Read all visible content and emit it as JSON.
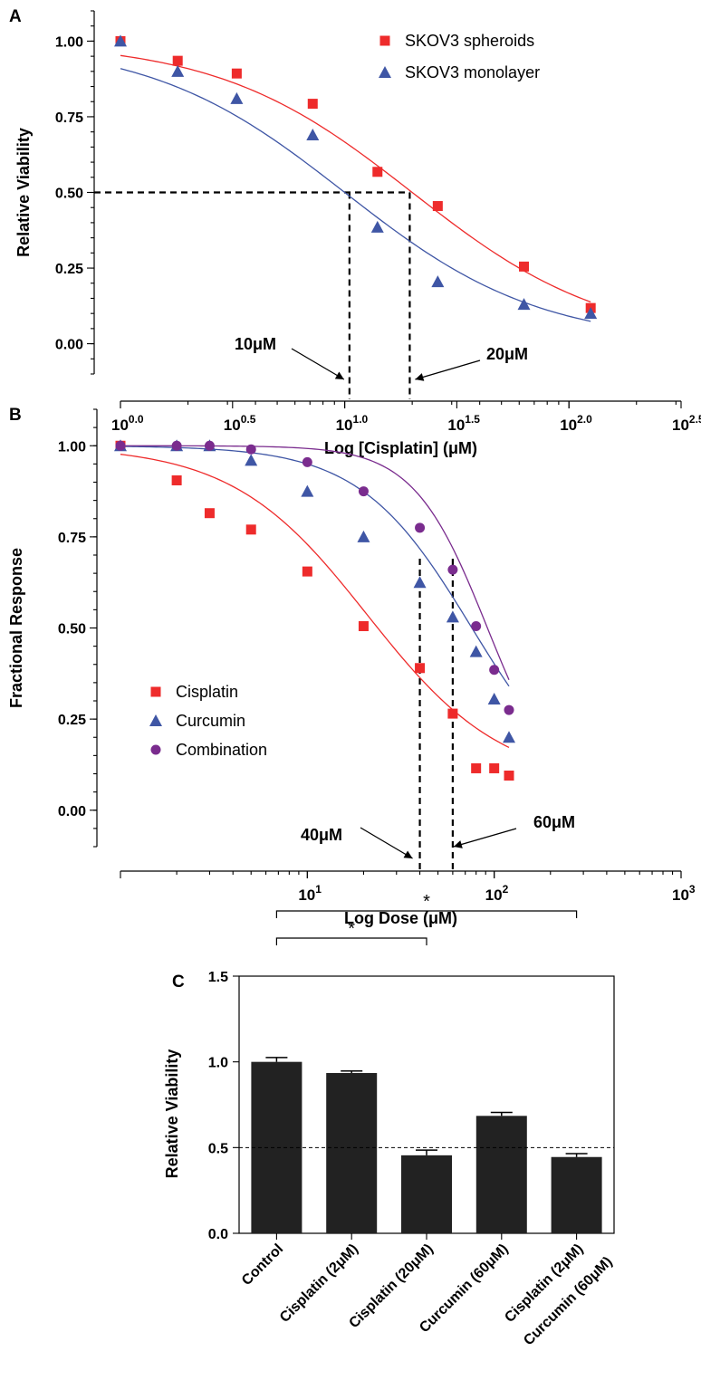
{
  "chart_data": [
    {
      "panel": "A",
      "type": "scatter",
      "xscale": "log",
      "xlabel": "Log [Cisplatin] (μM)",
      "ylabel": "Relative Viability",
      "xlim": [
        1,
        316.23
      ],
      "ylim": [
        -0.1,
        1.1
      ],
      "x_tick_labels": [
        {
          "value": 1,
          "base": "10",
          "exp": "0.0"
        },
        {
          "value": 3.162,
          "base": "10",
          "exp": "0.5"
        },
        {
          "value": 10,
          "base": "10",
          "exp": "1.0"
        },
        {
          "value": 31.62,
          "base": "10",
          "exp": "1.5"
        },
        {
          "value": 100,
          "base": "10",
          "exp": "2.0"
        },
        {
          "value": 316.23,
          "base": "10",
          "exp": "2.5"
        }
      ],
      "y_ticks": [
        0.0,
        0.25,
        0.5,
        0.75,
        1.0
      ],
      "y_tick_labels": [
        "0.00",
        "0.25",
        "0.50",
        "0.75",
        "1.00"
      ],
      "legend_position": "top-right",
      "series": [
        {
          "name": "SKOV3 spheroids",
          "color": "#ee2b2b",
          "marker": "square",
          "x": [
            1,
            1.8,
            3.3,
            7.2,
            14,
            26,
            63,
            125
          ],
          "y": [
            1.0,
            0.935,
            0.893,
            0.793,
            0.568,
            0.455,
            0.255,
            0.118
          ],
          "fit": {
            "top": 1.0,
            "bottom": 0.0,
            "ic50": 20,
            "hill": 1.0
          }
        },
        {
          "name": "SKOV3 monolayer",
          "color": "#3f56a5",
          "marker": "triangle",
          "x": [
            1,
            1.8,
            3.3,
            7.2,
            14,
            26,
            63,
            125
          ],
          "y": [
            1.0,
            0.9,
            0.81,
            0.69,
            0.385,
            0.205,
            0.13,
            0.1
          ],
          "fit": {
            "top": 1.0,
            "bottom": 0.0,
            "ic50": 10,
            "hill": 1.0
          }
        }
      ],
      "reference_lines": {
        "y": 0.5,
        "x": [
          10.5,
          19.5
        ]
      },
      "annotations": [
        {
          "text": "10μM",
          "points_to_x": 10.5
        },
        {
          "text": "20μM",
          "points_to_x": 19.5
        }
      ]
    },
    {
      "panel": "B",
      "type": "scatter",
      "xscale": "log",
      "xlabel": "Log Dose (μM)",
      "ylabel": "Fractional  Response",
      "xlim": [
        1,
        1000
      ],
      "ylim": [
        -0.1,
        1.1
      ],
      "x_tick_labels": [
        {
          "value": 10,
          "base": "10",
          "exp": "1"
        },
        {
          "value": 100,
          "base": "10",
          "exp": "2"
        },
        {
          "value": 1000,
          "base": "10",
          "exp": "3"
        }
      ],
      "y_ticks": [
        0.0,
        0.25,
        0.5,
        0.75,
        1.0
      ],
      "y_tick_labels": [
        "0.00",
        "0.25",
        "0.50",
        "0.75",
        "1.00"
      ],
      "legend_position": "bottom-left",
      "series": [
        {
          "name": "Cisplatin",
          "color": "#ee2b2b",
          "marker": "square",
          "x": [
            1,
            2,
            3,
            5,
            10,
            20,
            40,
            60,
            80,
            100,
            120
          ],
          "y": [
            1.0,
            0.905,
            0.815,
            0.77,
            0.655,
            0.505,
            0.39,
            0.265,
            0.115,
            0.115,
            0.095
          ],
          "fit": {
            "top": 1.0,
            "bottom": 0.07,
            "ic50": 21,
            "hill": 1.2,
            "x_from": 1,
            "x_to": 120
          }
        },
        {
          "name": "Curcumin",
          "color": "#3f56a5",
          "marker": "triangle",
          "x": [
            1,
            2,
            3,
            5,
            10,
            20,
            40,
            60,
            80,
            100,
            120
          ],
          "y": [
            1.0,
            1.0,
            1.0,
            0.96,
            0.875,
            0.75,
            0.625,
            0.53,
            0.435,
            0.305,
            0.2
          ],
          "fit": {
            "top": 1.0,
            "bottom": 0.0,
            "ic50": 76,
            "hill": 1.45,
            "x_from": 1,
            "x_to": 120
          }
        },
        {
          "name": "Combination",
          "color": "#7a2c8e",
          "marker": "circle",
          "x": [
            1,
            2,
            3,
            5,
            10,
            20,
            40,
            60,
            80,
            100,
            120
          ],
          "y": [
            1.0,
            1.0,
            1.0,
            0.99,
            0.955,
            0.875,
            0.775,
            0.66,
            0.505,
            0.385,
            0.275
          ],
          "fit": {
            "top": 1.0,
            "bottom": 0.0,
            "ic50": 92,
            "hill": 2.2,
            "x_from": 1,
            "x_to": 120
          }
        }
      ],
      "reference_lines": {
        "x": [
          40,
          60
        ]
      },
      "annotations": [
        {
          "text": "40μM",
          "points_to_x": 40
        },
        {
          "text": "60μM",
          "points_to_x": 60
        }
      ]
    },
    {
      "panel": "C",
      "type": "bar",
      "ylabel": "Relative Viability",
      "ylim": [
        0,
        1.5
      ],
      "y_ticks": [
        0.0,
        0.5,
        1.0,
        1.5
      ],
      "y_tick_labels": [
        "0.0",
        "0.5",
        "1.0",
        "1.5"
      ],
      "categories": [
        [
          "Control"
        ],
        [
          "Cisplatin (2μM)"
        ],
        [
          "Cisplatin (20μM)"
        ],
        [
          "Curcumin (60μM)"
        ],
        [
          "Cisplatin (2μM)",
          "Curcumin (60μM)"
        ]
      ],
      "values": [
        1.0,
        0.935,
        0.455,
        0.685,
        0.445
      ],
      "errors": [
        0.025,
        0.012,
        0.03,
        0.02,
        0.02
      ],
      "bar_color": "#222222",
      "reference_line": 0.5,
      "significance": [
        {
          "from": 0,
          "to": 2,
          "label": "*"
        },
        {
          "from": 0,
          "to": 4,
          "label": "*"
        }
      ]
    }
  ]
}
